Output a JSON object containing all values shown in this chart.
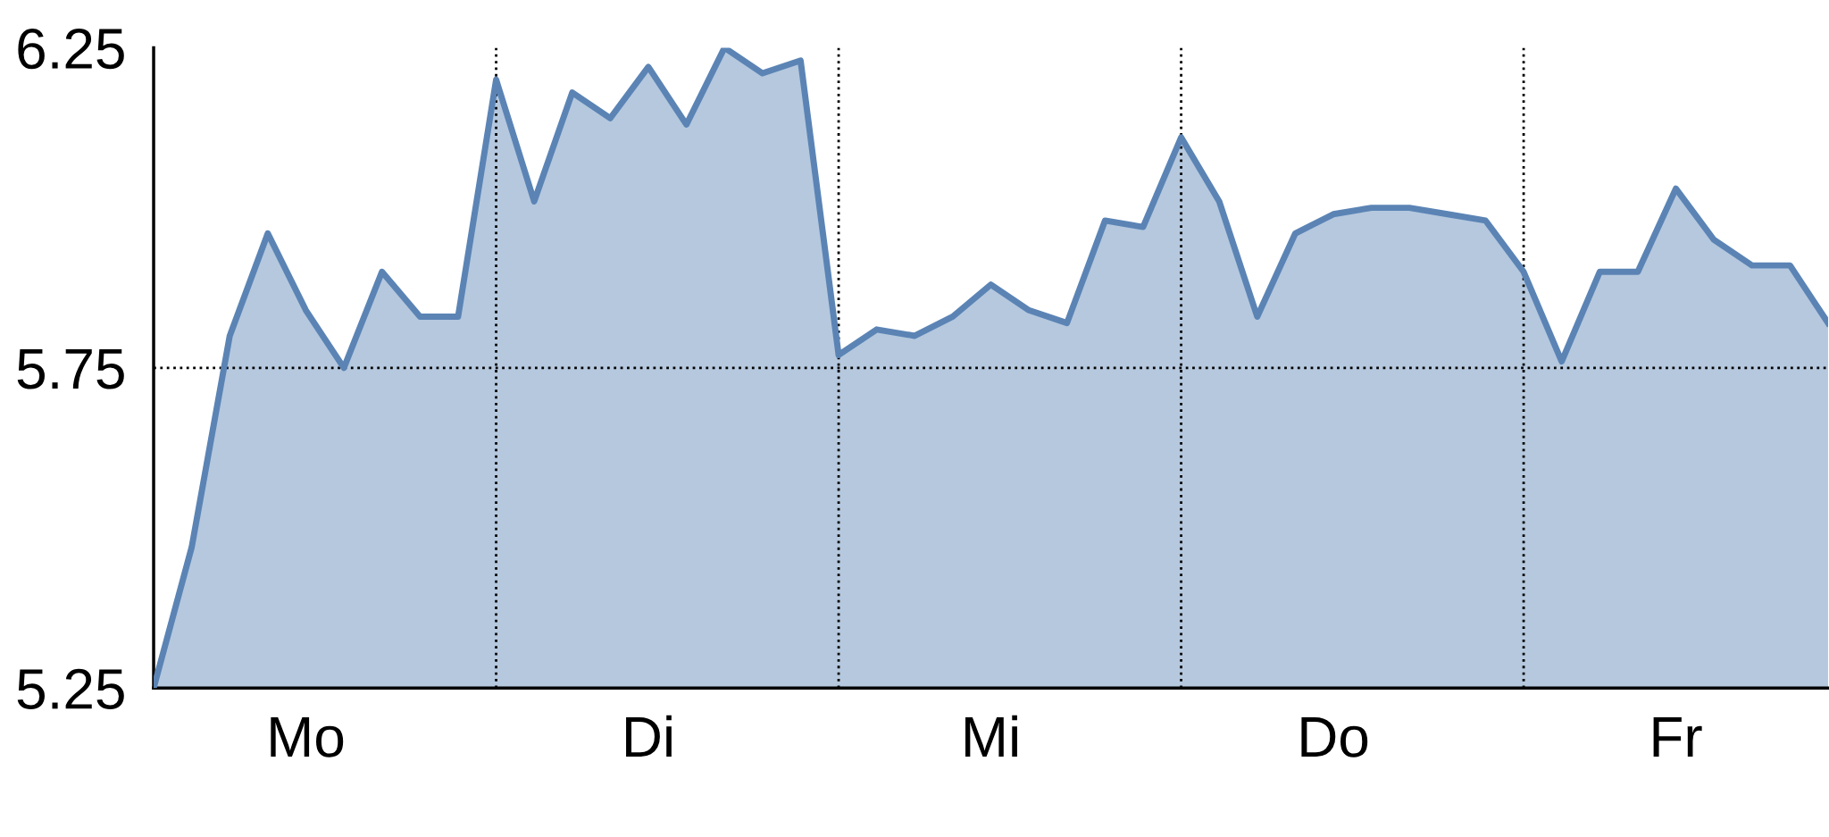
{
  "chart_data": {
    "type": "area",
    "categories": [
      null,
      null,
      null,
      null,
      "Mo",
      null,
      null,
      null,
      null,
      null,
      null,
      null,
      null,
      "Di",
      null,
      null,
      null,
      null,
      null,
      null,
      null,
      null,
      "Mi",
      null,
      null,
      null,
      null,
      null,
      null,
      null,
      null,
      "Do",
      null,
      null,
      null,
      null,
      null,
      null,
      null,
      null,
      "Fr",
      null,
      null,
      null,
      null
    ],
    "series": [
      {
        "color": "#5b84b5",
        "values": [
          5.25,
          5.47,
          5.8,
          5.96,
          5.84,
          5.75,
          5.9,
          5.83,
          5.83,
          6.2,
          6.01,
          6.18,
          6.14,
          6.22,
          6.13,
          6.25,
          6.21,
          6.23,
          5.77,
          5.81,
          5.8,
          5.83,
          5.88,
          5.84,
          5.82,
          5.98,
          5.97,
          6.11,
          6.01,
          5.83,
          5.96,
          5.99,
          6.0,
          6.0,
          5.99,
          5.98,
          5.9,
          5.76,
          5.9,
          5.9,
          6.03,
          5.95,
          5.91,
          5.91,
          5.82
        ]
      }
    ],
    "ylim": [
      5.25,
      6.25
    ],
    "yticks": [
      5.25,
      5.75,
      6.25
    ],
    "ref_lines": [
      {
        "axis": "y",
        "value": 5.75,
        "line_style": "dotted"
      }
    ],
    "grid": "x"
  }
}
